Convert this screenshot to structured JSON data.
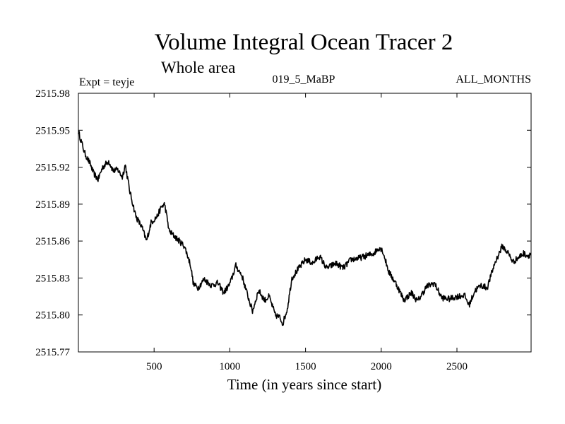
{
  "chart_data": {
    "type": "line",
    "title": "Volume Integral Ocean Tracer 2",
    "subtitle": "Whole area",
    "experiment": "Expt = teyje",
    "run_label": "019_5_MaBP",
    "months_label": "ALL_MONTHS",
    "xlabel": "Time (in years since start)",
    "ylabel": "",
    "xlim": [
      0,
      2990
    ],
    "ylim": [
      2515.77,
      2515.98
    ],
    "x_ticks": [
      500,
      1000,
      1500,
      2000,
      2500
    ],
    "x_tick_labels": [
      "500",
      "1000",
      "1500",
      "2000",
      "2500"
    ],
    "y_ticks": [
      2515.77,
      2515.8,
      2515.83,
      2515.86,
      2515.89,
      2515.92,
      2515.95,
      2515.98
    ],
    "y_tick_labels": [
      "2515.77",
      "2515.80",
      "2515.83",
      "2515.86",
      "2515.89",
      "2515.92",
      "2515.95",
      "2515.98"
    ],
    "grid": false,
    "series": [
      {
        "name": "Volume Integral Ocean Tracer 2",
        "x": [
          0,
          40,
          80,
          100,
          130,
          160,
          200,
          230,
          260,
          290,
          310,
          340,
          380,
          420,
          450,
          480,
          520,
          550,
          570,
          600,
          650,
          700,
          740,
          760,
          790,
          830,
          880,
          920,
          960,
          1000,
          1040,
          1080,
          1120,
          1150,
          1190,
          1230,
          1260,
          1300,
          1330,
          1350,
          1380,
          1410,
          1450,
          1500,
          1550,
          1590,
          1640,
          1700,
          1750,
          1800,
          1850,
          1900,
          1950,
          1990,
          2010,
          2050,
          2100,
          2150,
          2200,
          2240,
          2300,
          2350,
          2400,
          2450,
          2500,
          2550,
          2580,
          2620,
          2660,
          2700,
          2750,
          2800,
          2840,
          2870,
          2900,
          2940,
          2970,
          2990
        ],
        "y": [
          2515.949,
          2515.932,
          2515.922,
          2515.915,
          2515.91,
          2515.92,
          2515.925,
          2515.917,
          2515.918,
          2515.912,
          2515.922,
          2515.9,
          2515.88,
          2515.871,
          2515.86,
          2515.875,
          2515.88,
          2515.888,
          2515.89,
          2515.868,
          2515.862,
          2515.856,
          2515.841,
          2515.825,
          2515.822,
          2515.829,
          2515.824,
          2515.826,
          2515.818,
          2515.825,
          2515.84,
          2515.832,
          2515.815,
          2515.803,
          2515.82,
          2515.812,
          2515.815,
          2515.8,
          2515.798,
          2515.793,
          2515.805,
          2515.83,
          2515.837,
          2515.845,
          2515.842,
          2515.848,
          2515.838,
          2515.842,
          2515.838,
          2515.845,
          2515.846,
          2515.848,
          2515.85,
          2515.855,
          2515.852,
          2515.835,
          2515.825,
          2515.812,
          2515.818,
          2515.811,
          2515.823,
          2515.826,
          2515.814,
          2515.813,
          2515.815,
          2515.816,
          2515.808,
          2515.82,
          2515.824,
          2515.822,
          2515.842,
          2515.856,
          2515.85,
          2515.843,
          2515.846,
          2515.85,
          2515.848,
          2515.85
        ]
      }
    ]
  }
}
